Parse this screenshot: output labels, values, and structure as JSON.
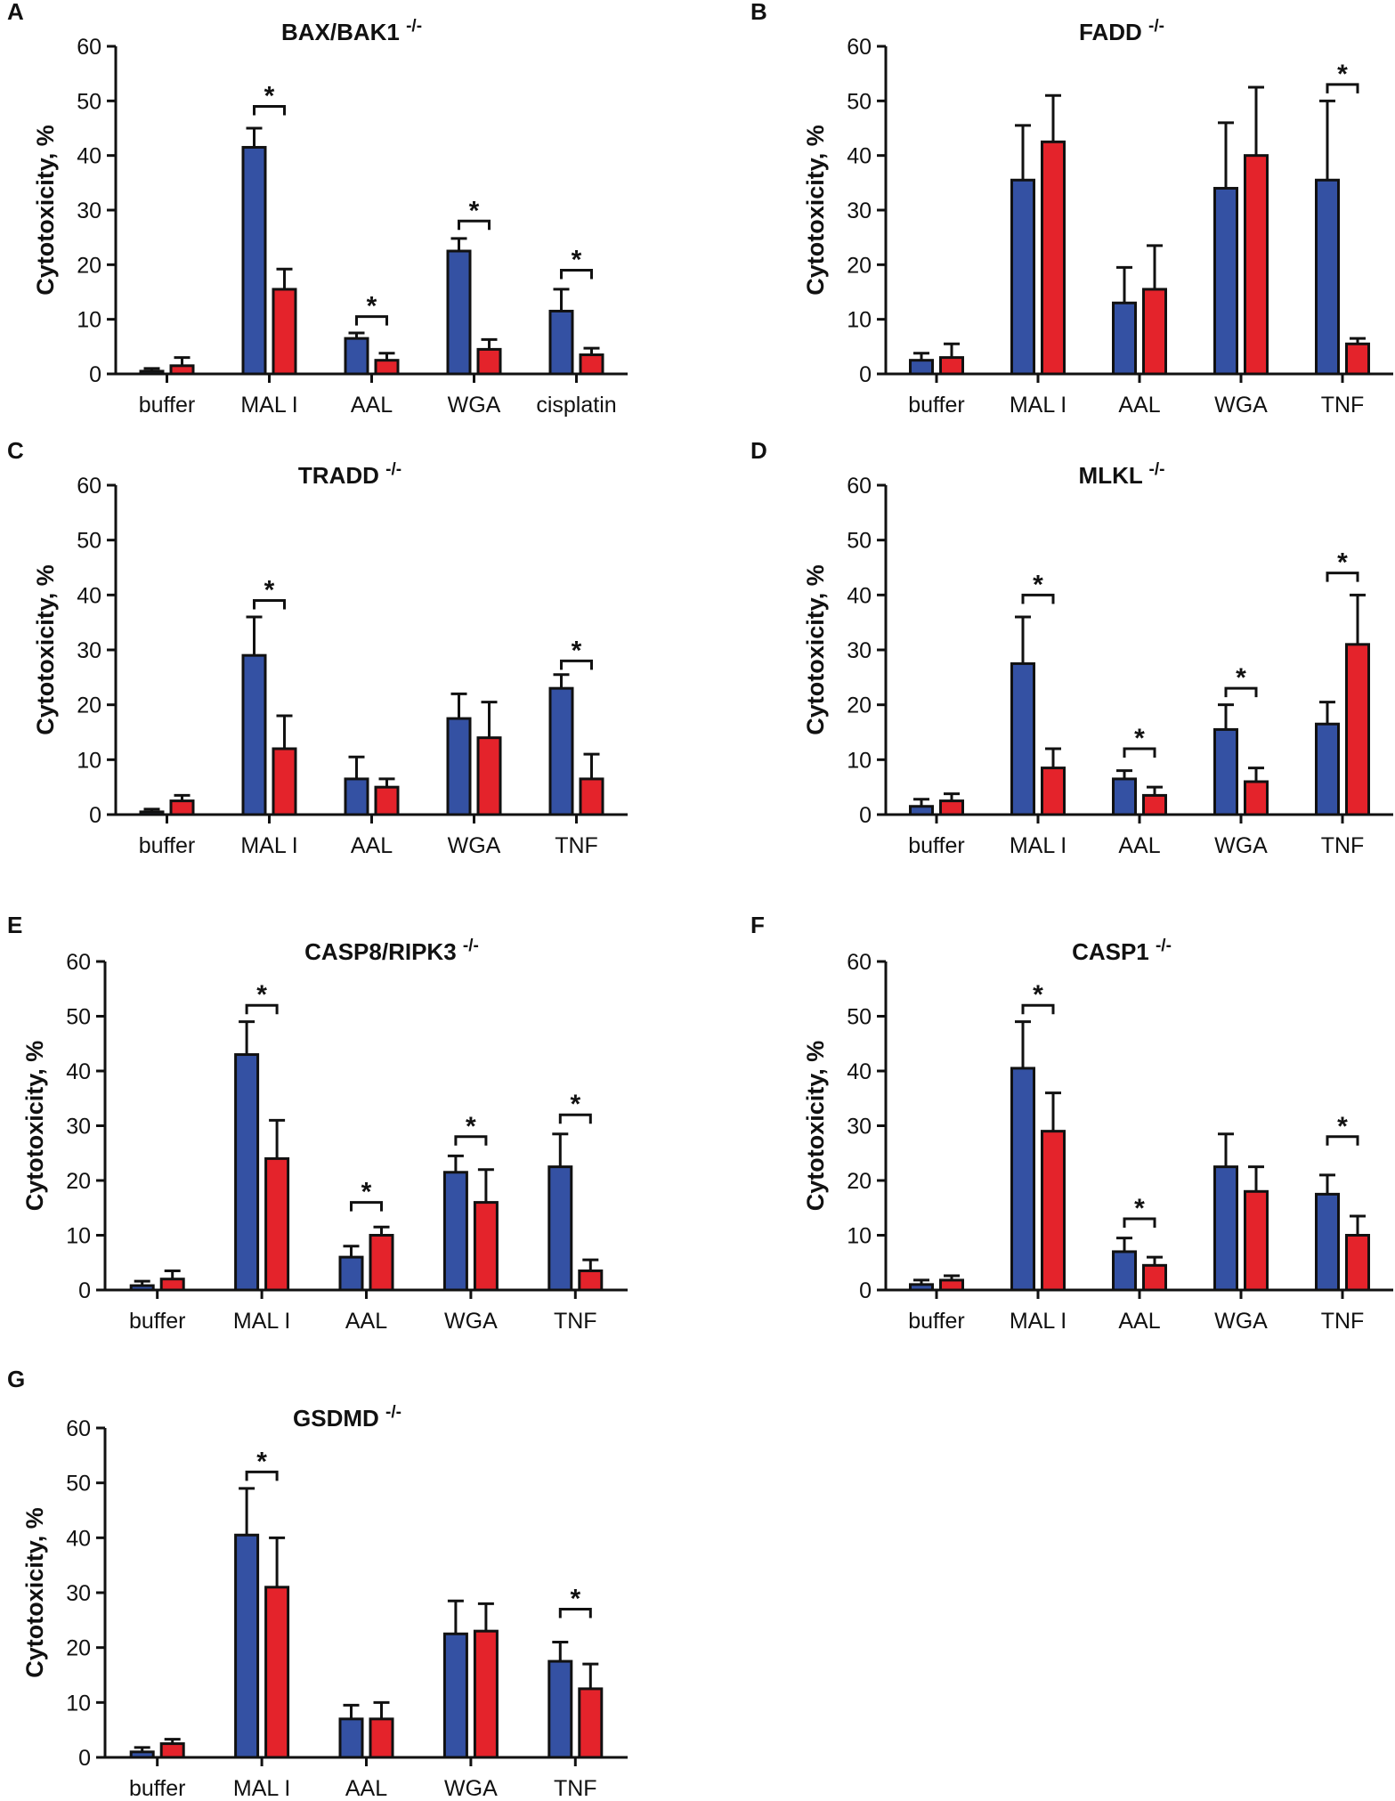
{
  "figure": {
    "series_colors": {
      "blue": "#3451a3",
      "red": "#e4232b"
    },
    "panels_layout_note": "7 panels, 2 columns"
  },
  "chart_data": [
    {
      "panel_letter": "A",
      "type": "bar",
      "title": "BAX/BAK1",
      "title_superscript": "-/-",
      "ylabel": "Cytotoxicity, %",
      "xlabel": "",
      "ylim": [
        0,
        60
      ],
      "yticks": [
        "0",
        "10",
        "20",
        "30",
        "40",
        "50",
        "60"
      ],
      "categories": [
        "buffer",
        "MAL I",
        "AAL",
        "WGA",
        "cisplatin"
      ],
      "series": [
        {
          "name": "blue",
          "color": "#3451a3",
          "values": [
            0.5,
            41.5,
            6.5,
            22.5,
            11.5
          ],
          "errors": [
            0.5,
            3.5,
            1.0,
            2.3,
            4.0
          ]
        },
        {
          "name": "red",
          "color": "#e4232b",
          "values": [
            1.5,
            15.5,
            2.5,
            4.5,
            3.5
          ],
          "errors": [
            1.5,
            3.7,
            1.3,
            1.8,
            1.2
          ]
        }
      ],
      "significance": [
        {
          "category_index": 1,
          "label": "*",
          "level": 49
        },
        {
          "category_index": 2,
          "label": "*",
          "level": 10.5
        },
        {
          "category_index": 3,
          "label": "*",
          "level": 28
        },
        {
          "category_index": 4,
          "label": "*",
          "level": 19
        }
      ]
    },
    {
      "panel_letter": "B",
      "type": "bar",
      "title": "FADD",
      "title_superscript": "-/-",
      "ylabel": "Cytotoxicity, %",
      "xlabel": "",
      "ylim": [
        0,
        60
      ],
      "yticks": [
        "0",
        "10",
        "20",
        "30",
        "40",
        "50",
        "60"
      ],
      "categories": [
        "buffer",
        "MAL I",
        "AAL",
        "WGA",
        "TNF"
      ],
      "series": [
        {
          "name": "blue",
          "color": "#3451a3",
          "values": [
            2.5,
            35.5,
            13.0,
            34.0,
            35.5
          ],
          "errors": [
            1.3,
            10.0,
            6.5,
            12.0,
            14.5
          ]
        },
        {
          "name": "red",
          "color": "#e4232b",
          "values": [
            3.0,
            42.5,
            15.5,
            40.0,
            5.5
          ],
          "errors": [
            2.5,
            8.5,
            8.0,
            12.5,
            1.0
          ]
        }
      ],
      "significance": [
        {
          "category_index": 4,
          "label": "*",
          "level": 53
        }
      ]
    },
    {
      "panel_letter": "C",
      "type": "bar",
      "title": "TRADD",
      "title_superscript": "-/-",
      "ylabel": "Cytotoxicity, %",
      "xlabel": "",
      "ylim": [
        0,
        60
      ],
      "yticks": [
        "0",
        "10",
        "20",
        "30",
        "40",
        "50",
        "60"
      ],
      "categories": [
        "buffer",
        "MAL I",
        "AAL",
        "WGA",
        "TNF"
      ],
      "series": [
        {
          "name": "blue",
          "color": "#3451a3",
          "values": [
            0.5,
            29.0,
            6.5,
            17.5,
            23.0
          ],
          "errors": [
            0.5,
            7.0,
            4.0,
            4.5,
            2.5
          ]
        },
        {
          "name": "red",
          "color": "#e4232b",
          "values": [
            2.5,
            12.0,
            5.0,
            14.0,
            6.5
          ],
          "errors": [
            1.0,
            6.0,
            1.5,
            6.5,
            4.5
          ]
        }
      ],
      "significance": [
        {
          "category_index": 1,
          "label": "*",
          "level": 39
        },
        {
          "category_index": 4,
          "label": "*",
          "level": 28
        }
      ]
    },
    {
      "panel_letter": "D",
      "type": "bar",
      "title": "MLKL",
      "title_superscript": "-/-",
      "ylabel": "Cytotoxicity, %",
      "xlabel": "",
      "ylim": [
        0,
        60
      ],
      "yticks": [
        "0",
        "10",
        "20",
        "30",
        "40",
        "50",
        "60"
      ],
      "categories": [
        "buffer",
        "MAL I",
        "AAL",
        "WGA",
        "TNF"
      ],
      "series": [
        {
          "name": "blue",
          "color": "#3451a3",
          "values": [
            1.5,
            27.5,
            6.5,
            15.5,
            16.5
          ],
          "errors": [
            1.3,
            8.5,
            1.5,
            4.5,
            4.0
          ]
        },
        {
          "name": "red",
          "color": "#e4232b",
          "values": [
            2.5,
            8.5,
            3.5,
            6.0,
            31.0
          ],
          "errors": [
            1.3,
            3.5,
            1.5,
            2.5,
            9.0
          ]
        }
      ],
      "significance": [
        {
          "category_index": 1,
          "label": "*",
          "level": 40
        },
        {
          "category_index": 2,
          "label": "*",
          "level": 12
        },
        {
          "category_index": 3,
          "label": "*",
          "level": 23
        },
        {
          "category_index": 4,
          "label": "*",
          "level": 44
        }
      ]
    },
    {
      "panel_letter": "E",
      "type": "bar",
      "title": "CASP8/RIPK3",
      "title_superscript": "-/-",
      "ylabel": "Cytotoxicity, %",
      "xlabel": "",
      "ylim": [
        0,
        60
      ],
      "yticks": [
        "0",
        "10",
        "20",
        "30",
        "40",
        "50",
        "60"
      ],
      "categories": [
        "buffer",
        "MAL I",
        "AAL",
        "WGA",
        "TNF"
      ],
      "series": [
        {
          "name": "blue",
          "color": "#3451a3",
          "values": [
            0.8,
            43.0,
            6.0,
            21.5,
            22.5
          ],
          "errors": [
            0.8,
            6.0,
            2.0,
            3.0,
            6.0
          ]
        },
        {
          "name": "red",
          "color": "#e4232b",
          "values": [
            2.0,
            24.0,
            10.0,
            16.0,
            3.5
          ],
          "errors": [
            1.5,
            7.0,
            1.5,
            6.0,
            2.0
          ]
        }
      ],
      "significance": [
        {
          "category_index": 1,
          "label": "*",
          "level": 52
        },
        {
          "category_index": 2,
          "label": "*",
          "level": 16
        },
        {
          "category_index": 3,
          "label": "*",
          "level": 28
        },
        {
          "category_index": 4,
          "label": "*",
          "level": 32
        }
      ]
    },
    {
      "panel_letter": "F",
      "type": "bar",
      "title": "CASP1",
      "title_superscript": "-/-",
      "ylabel": "Cytotoxicity, %",
      "xlabel": "",
      "ylim": [
        0,
        60
      ],
      "yticks": [
        "0",
        "10",
        "20",
        "30",
        "40",
        "50",
        "60"
      ],
      "categories": [
        "buffer",
        "MAL I",
        "AAL",
        "WGA",
        "TNF"
      ],
      "series": [
        {
          "name": "blue",
          "color": "#3451a3",
          "values": [
            1.0,
            40.5,
            7.0,
            22.5,
            17.5
          ],
          "errors": [
            0.8,
            8.5,
            2.5,
            6.0,
            3.5
          ]
        },
        {
          "name": "red",
          "color": "#e4232b",
          "values": [
            1.8,
            29.0,
            4.5,
            18.0,
            10.0
          ],
          "errors": [
            0.8,
            7.0,
            1.5,
            4.5,
            3.5
          ]
        }
      ],
      "significance": [
        {
          "category_index": 1,
          "label": "*",
          "level": 52
        },
        {
          "category_index": 2,
          "label": "*",
          "level": 13
        },
        {
          "category_index": 4,
          "label": "*",
          "level": 28
        }
      ]
    },
    {
      "panel_letter": "G",
      "type": "bar",
      "title": "GSDMD",
      "title_superscript": "-/-",
      "ylabel": "Cytotoxicity, %",
      "xlabel": "",
      "ylim": [
        0,
        60
      ],
      "yticks": [
        "0",
        "10",
        "20",
        "30",
        "40",
        "50",
        "60"
      ],
      "categories": [
        "buffer",
        "MAL I",
        "AAL",
        "WGA",
        "TNF"
      ],
      "series": [
        {
          "name": "blue",
          "color": "#3451a3",
          "values": [
            1.0,
            40.5,
            7.0,
            22.5,
            17.5
          ],
          "errors": [
            0.8,
            8.5,
            2.5,
            6.0,
            3.5
          ]
        },
        {
          "name": "red",
          "color": "#e4232b",
          "values": [
            2.5,
            31.0,
            7.0,
            23.0,
            12.5
          ],
          "errors": [
            0.8,
            9.0,
            3.0,
            5.0,
            4.5
          ]
        }
      ],
      "significance": [
        {
          "category_index": 1,
          "label": "*",
          "level": 52
        },
        {
          "category_index": 4,
          "label": "*",
          "level": 27
        }
      ]
    }
  ]
}
